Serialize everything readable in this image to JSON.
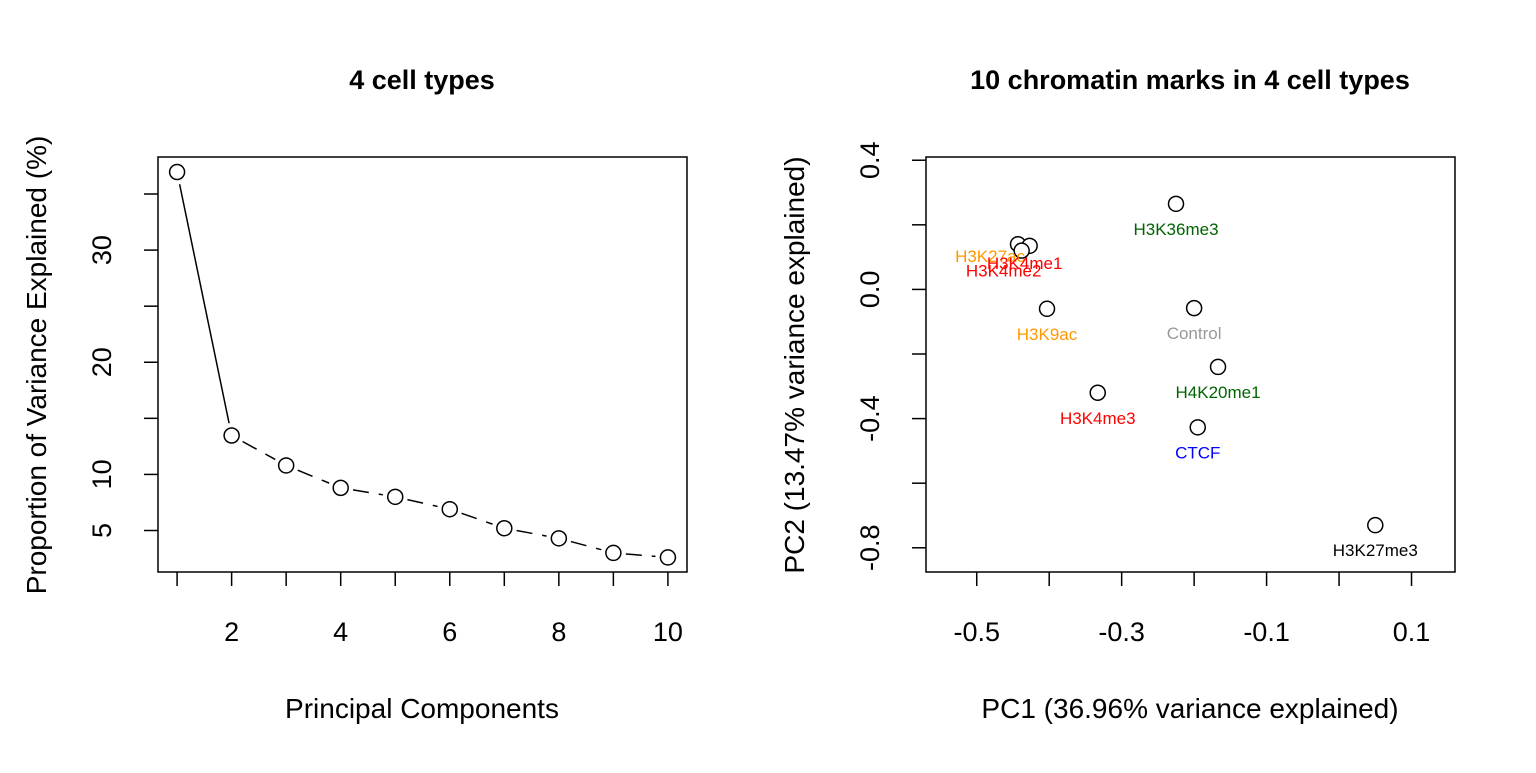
{
  "chart_data": [
    {
      "type": "line",
      "title": "4 cell types",
      "xlabel": "Principal Components",
      "ylabel": "Proportion of Variance Explained (%)",
      "x": [
        1,
        2,
        3,
        4,
        5,
        6,
        7,
        8,
        9,
        10
      ],
      "series": [
        {
          "values": [
            36.96,
            13.47,
            10.8,
            8.8,
            8.0,
            6.9,
            5.2,
            4.3,
            3.0,
            2.6
          ]
        }
      ],
      "xticks": [
        "2",
        "4",
        "6",
        "8",
        "10"
      ],
      "yticks": [
        "5",
        "10",
        "20",
        "30"
      ],
      "xlim": [
        0.65,
        10.35
      ],
      "ylim": [
        1.3,
        38.3
      ],
      "line_style": "solid first segment, dashed thereafter",
      "marker": "open circle",
      "grid": false,
      "legend": "none"
    },
    {
      "type": "scatter",
      "title": "10 chromatin marks in 4 cell types",
      "xlabel": "PC1 (36.96% variance explained)",
      "ylabel": "PC2 (13.47% variance explained)",
      "xticks": [
        "-0.5",
        "-0.3",
        "-0.1",
        "0.1"
      ],
      "yticks": [
        "-0.8",
        "-0.4",
        "0.0",
        "0.4"
      ],
      "xlim": [
        -0.57,
        0.16
      ],
      "ylim": [
        -0.875,
        0.41
      ],
      "grid": false,
      "legend": "none",
      "marker": "open circle",
      "points": [
        {
          "label": "H3K27ac",
          "x": -0.443,
          "y": 0.14,
          "color": "#ff9900"
        },
        {
          "label": "H3K4me1",
          "x": -0.427,
          "y": 0.135,
          "color": "#ff0000"
        },
        {
          "label": "H3K4me2",
          "x": -0.438,
          "y": 0.12,
          "color": "#ff0000"
        },
        {
          "label": "H3K36me3",
          "x": -0.225,
          "y": 0.265,
          "color": "#006400"
        },
        {
          "label": "H3K9ac",
          "x": -0.403,
          "y": -0.06,
          "color": "#ff9900"
        },
        {
          "label": "Control",
          "x": -0.2,
          "y": -0.058,
          "color": "#999999"
        },
        {
          "label": "H4K20me1",
          "x": -0.167,
          "y": -0.24,
          "color": "#006400"
        },
        {
          "label": "H3K4me3",
          "x": -0.333,
          "y": -0.32,
          "color": "#ff0000"
        },
        {
          "label": "CTCF",
          "x": -0.195,
          "y": -0.427,
          "color": "#0000ff"
        },
        {
          "label": "H3K27me3",
          "x": 0.05,
          "y": -0.73,
          "color": "#000000"
        }
      ]
    }
  ]
}
